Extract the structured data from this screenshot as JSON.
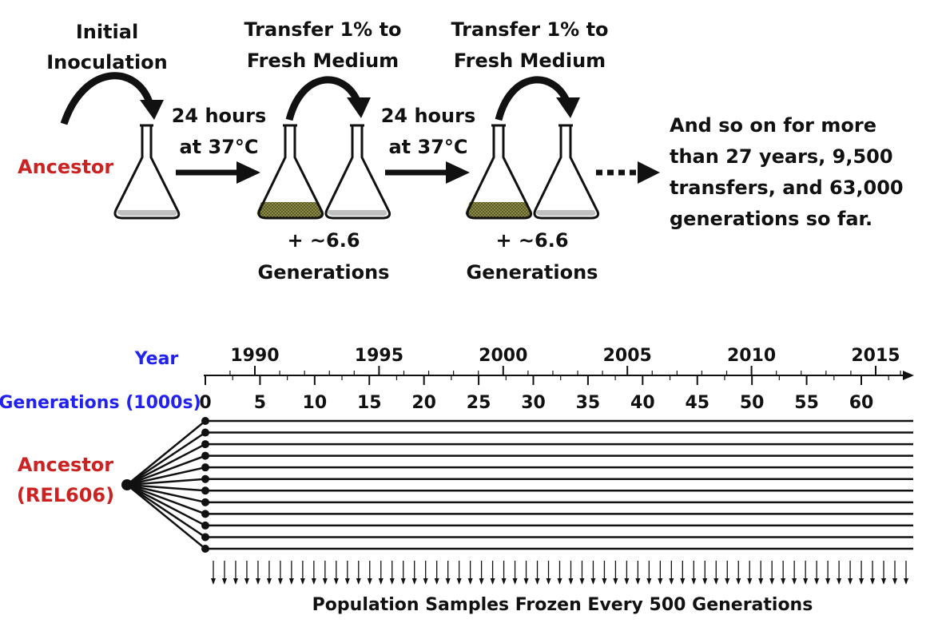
{
  "colors": {
    "ink": "#111111",
    "ancestor_red": "#cc2222",
    "axis_label_blue": "#2222ee",
    "medium_gray": "#c0c0c0",
    "culture_olive": "#7a7a3a"
  },
  "top": {
    "steps": [
      {
        "line1": "Initial",
        "line2": "Inoculation"
      },
      {
        "line1": "Transfer 1% to",
        "line2": "Fresh Medium"
      },
      {
        "line1": "Transfer 1% to",
        "line2": "Fresh Medium"
      }
    ],
    "ancestor_label": "Ancestor",
    "incubations": [
      {
        "line1": "24 hours",
        "line2": "at 37°C"
      },
      {
        "line1": "24 hours",
        "line2": "at 37°C"
      }
    ],
    "generation_notes": [
      {
        "line1": "+ ~6.6",
        "line2": "Generations"
      },
      {
        "line1": "+ ~6.6",
        "line2": "Generations"
      }
    ],
    "summary": [
      "And so on for more",
      "than 27 years, 9,500",
      "transfers, and 63,000",
      "generations so far."
    ]
  },
  "timeline": {
    "year_label": "Year",
    "generations_label": "Generations (1000s)",
    "years": [
      "1990",
      "1995",
      "2000",
      "2005",
      "2010",
      "2015"
    ],
    "generations": [
      "0",
      "5",
      "10",
      "15",
      "20",
      "25",
      "30",
      "35",
      "40",
      "45",
      "50",
      "55",
      "60"
    ],
    "ancestor_label": {
      "line1": "Ancestor",
      "line2": "(REL606)"
    },
    "population_count": 12,
    "frozen_sample_count": 63,
    "footer": "Population Samples Frozen Every 500 Generations"
  }
}
